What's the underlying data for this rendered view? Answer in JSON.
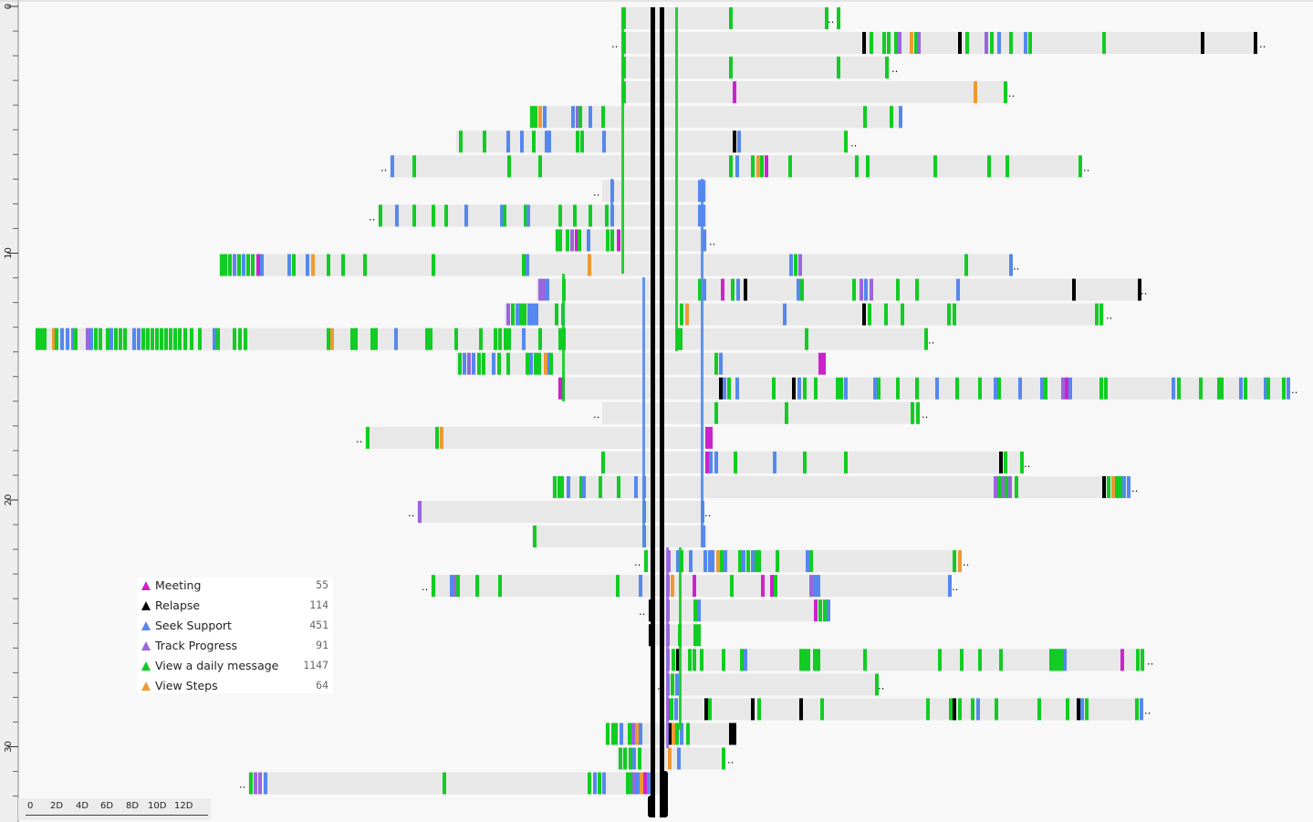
{
  "legend": {
    "items": [
      {
        "label": "Meeting",
        "count": "55",
        "color": "#cc22cc"
      },
      {
        "label": "Relapse",
        "count": "114",
        "color": "#000000"
      },
      {
        "label": "Seek Support",
        "count": "451",
        "color": "#5588ee"
      },
      {
        "label": "Track Progress",
        "count": "91",
        "color": "#9966dd"
      },
      {
        "label": "View a daily message",
        "count": "1147",
        "color": "#11cc22"
      },
      {
        "label": "View Steps",
        "count": "64",
        "color": "#ee9933"
      }
    ]
  },
  "y_axis": {
    "ticks": [
      "0",
      "10",
      "20",
      "30"
    ]
  },
  "time_scale": {
    "labels": [
      "0",
      "2D",
      "4D",
      "6D",
      "8D",
      "10D",
      "12D"
    ]
  },
  "overflow_marker": "‥",
  "colors": {
    "meeting": "#cc22cc",
    "relapse": "#000000",
    "support": "#5588ee",
    "track": "#9966dd",
    "message": "#11cc22",
    "steps": "#ee9933",
    "bar": "#e8e8e8",
    "background": "#f8f8f8"
  }
}
